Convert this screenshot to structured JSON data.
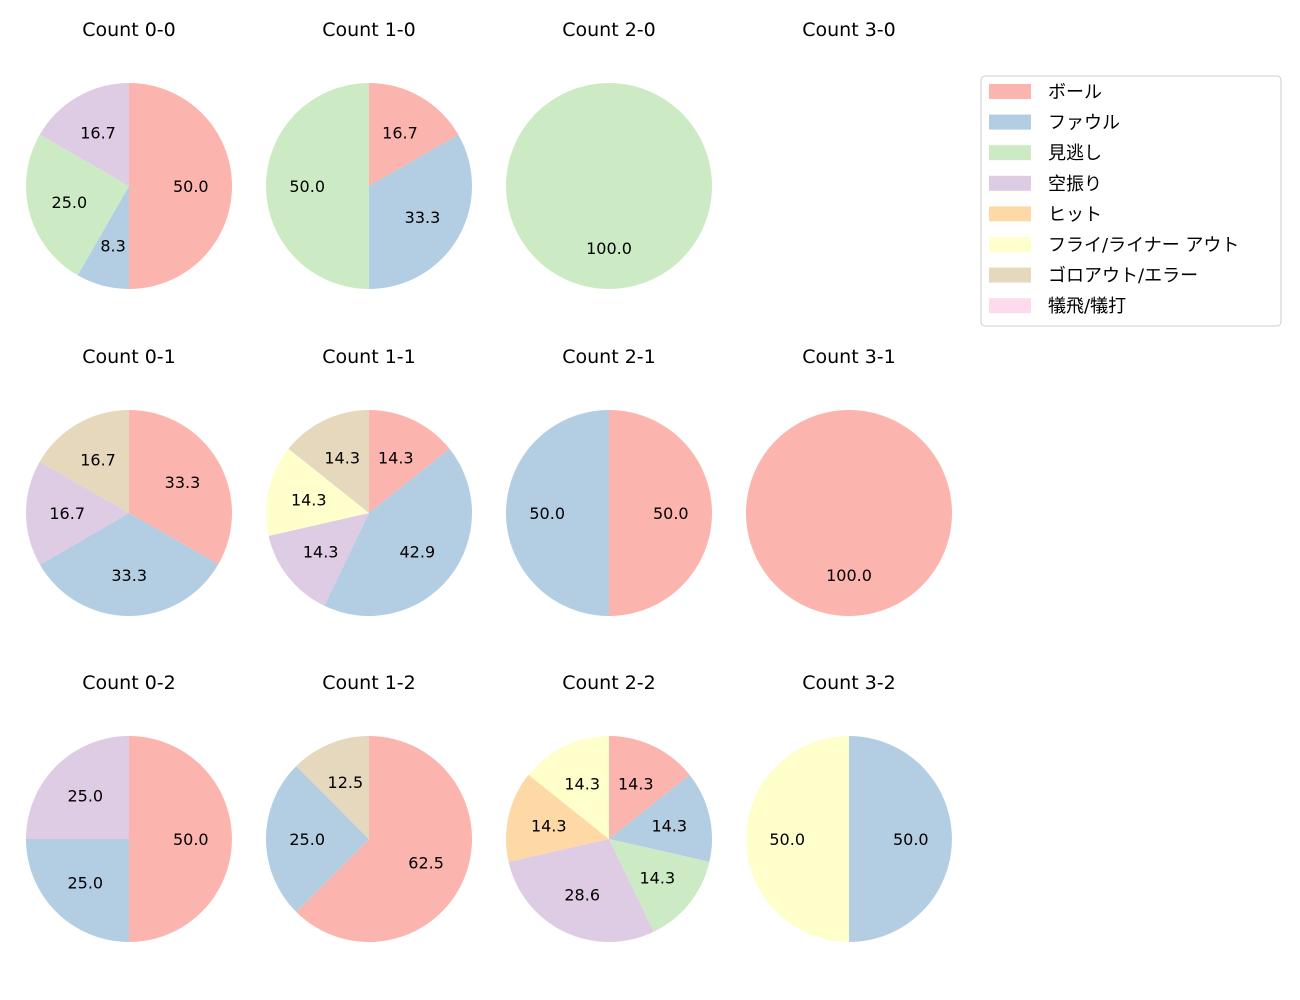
{
  "legend": {
    "items": [
      {
        "label": "ボール",
        "color": "#fbb4ae"
      },
      {
        "label": "ファウル",
        "color": "#b3cde3"
      },
      {
        "label": "見逃し",
        "color": "#ccebc5"
      },
      {
        "label": "空振り",
        "color": "#decbe4"
      },
      {
        "label": "ヒット",
        "color": "#fed9a6"
      },
      {
        "label": "フライ/ライナー アウト",
        "color": "#ffffcc"
      },
      {
        "label": "ゴロアウト/エラー",
        "color": "#e5d8bd"
      },
      {
        "label": "犠飛/犠打",
        "color": "#fddaec"
      }
    ]
  },
  "chart_data": [
    {
      "type": "pie",
      "title": "Count 0-0",
      "labels": [
        "ボール",
        "ファウル",
        "見逃し",
        "空振り"
      ],
      "values": [
        50.0,
        8.3,
        25.0,
        16.7
      ]
    },
    {
      "type": "pie",
      "title": "Count 1-0",
      "labels": [
        "ボール",
        "ファウル",
        "見逃し"
      ],
      "values": [
        16.7,
        33.3,
        50.0
      ]
    },
    {
      "type": "pie",
      "title": "Count 2-0",
      "labels": [
        "見逃し"
      ],
      "values": [
        100.0
      ]
    },
    {
      "type": "pie",
      "title": "Count 3-0",
      "labels": [],
      "values": []
    },
    {
      "type": "pie",
      "title": "Count 0-1",
      "labels": [
        "ボール",
        "ファウル",
        "空振り",
        "ゴロアウト/エラー"
      ],
      "values": [
        33.3,
        33.3,
        16.7,
        16.7
      ]
    },
    {
      "type": "pie",
      "title": "Count 1-1",
      "labels": [
        "ボール",
        "ファウル",
        "空振り",
        "フライ/ライナー アウト",
        "ゴロアウト/エラー"
      ],
      "values": [
        14.3,
        42.9,
        14.3,
        14.3,
        14.3
      ]
    },
    {
      "type": "pie",
      "title": "Count 2-1",
      "labels": [
        "ボール",
        "ファウル"
      ],
      "values": [
        50.0,
        50.0
      ]
    },
    {
      "type": "pie",
      "title": "Count 3-1",
      "labels": [
        "ボール"
      ],
      "values": [
        100.0
      ]
    },
    {
      "type": "pie",
      "title": "Count 0-2",
      "labels": [
        "ボール",
        "ファウル",
        "空振り"
      ],
      "values": [
        50.0,
        25.0,
        25.0
      ]
    },
    {
      "type": "pie",
      "title": "Count 1-2",
      "labels": [
        "ボール",
        "ファウル",
        "ゴロアウト/エラー"
      ],
      "values": [
        62.5,
        25.0,
        12.5
      ]
    },
    {
      "type": "pie",
      "title": "Count 2-2",
      "labels": [
        "ボール",
        "ファウル",
        "見逃し",
        "空振り",
        "ヒット",
        "フライ/ライナー アウト"
      ],
      "values": [
        14.3,
        14.3,
        14.3,
        28.6,
        14.3,
        14.3
      ]
    },
    {
      "type": "pie",
      "title": "Count 3-2",
      "labels": [
        "ファウル",
        "フライ/ライナー アウト"
      ],
      "values": [
        50.0,
        50.0
      ]
    }
  ]
}
